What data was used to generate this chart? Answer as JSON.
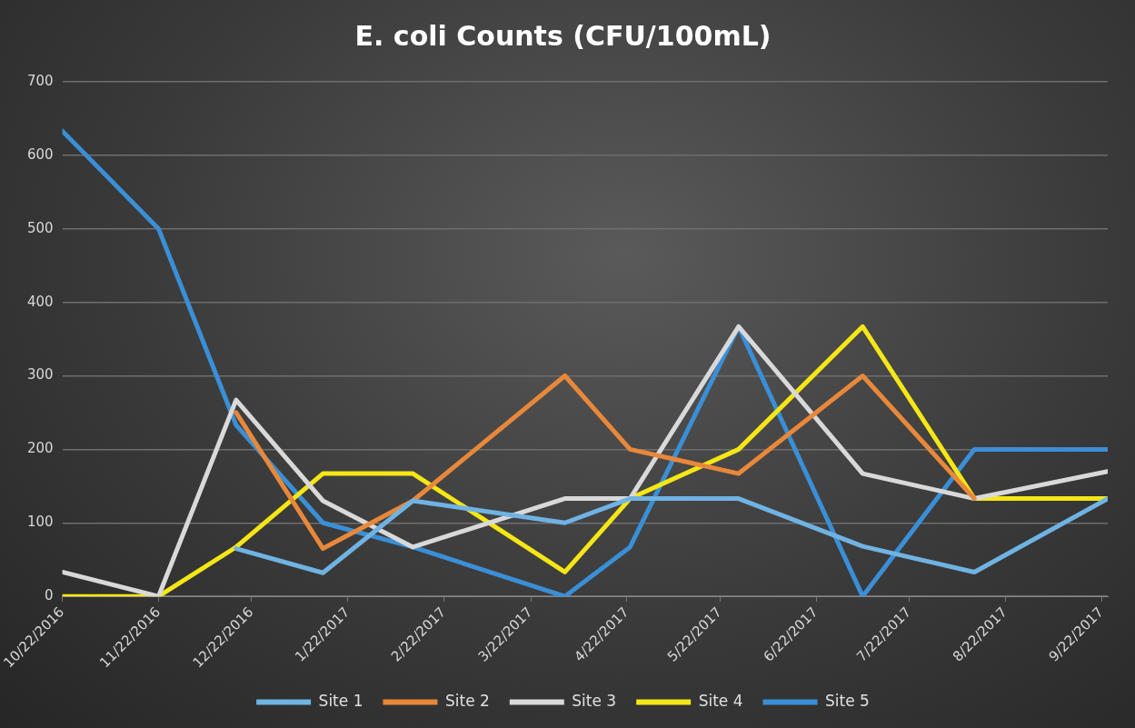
{
  "chart_data": {
    "type": "line",
    "title": "E. coli Counts (CFU/100mL)",
    "x": [
      "2016-10-22",
      "2016-11-22",
      "2016-12-17",
      "2017-01-14",
      "2017-02-12",
      "2017-04-02",
      "2017-04-23",
      "2017-05-28",
      "2017-07-07",
      "2017-08-12",
      "2017-09-24"
    ],
    "xlim": [
      "2016-10-22",
      "2017-09-24"
    ],
    "xticks": [
      {
        "value": "2016-10-22",
        "label": "10/22/2016"
      },
      {
        "value": "2016-11-22",
        "label": "11/22/2016"
      },
      {
        "value": "2016-12-22",
        "label": "12/22/2016"
      },
      {
        "value": "2017-01-22",
        "label": "1/22/2017"
      },
      {
        "value": "2017-02-22",
        "label": "2/22/2017"
      },
      {
        "value": "2017-03-22",
        "label": "3/22/2017"
      },
      {
        "value": "2017-04-22",
        "label": "4/22/2017"
      },
      {
        "value": "2017-05-22",
        "label": "5/22/2017"
      },
      {
        "value": "2017-06-22",
        "label": "6/22/2017"
      },
      {
        "value": "2017-07-22",
        "label": "7/22/2017"
      },
      {
        "value": "2017-08-22",
        "label": "8/22/2017"
      },
      {
        "value": "2017-09-22",
        "label": "9/22/2017"
      }
    ],
    "ylim": [
      0,
      700
    ],
    "yticks": [
      0,
      100,
      200,
      300,
      400,
      500,
      600,
      700
    ],
    "grid": "y",
    "legend": "bottom",
    "marker": "none",
    "line_style": "solid",
    "series": [
      {
        "name": "Site 1",
        "color": "#6fb3e3",
        "values": [
          null,
          null,
          65,
          32,
          130,
          100,
          133,
          133,
          68,
          33,
          133
        ]
      },
      {
        "name": "Site 2",
        "color": "#e8883a",
        "values": [
          null,
          null,
          250,
          65,
          130,
          300,
          200,
          167,
          300,
          133,
          null
        ]
      },
      {
        "name": "Site 3",
        "color": "#d9d9d9",
        "values": [
          33,
          0,
          267,
          130,
          67,
          133,
          133,
          367,
          167,
          133,
          170
        ]
      },
      {
        "name": "Site 4",
        "color": "#f5e616",
        "values": [
          0,
          0,
          67,
          167,
          167,
          33,
          133,
          200,
          367,
          133,
          133
        ]
      },
      {
        "name": "Site 5",
        "color": "#3a8fd6",
        "values": [
          633,
          500,
          233,
          100,
          67,
          0,
          67,
          367,
          0,
          200,
          200
        ]
      }
    ]
  }
}
